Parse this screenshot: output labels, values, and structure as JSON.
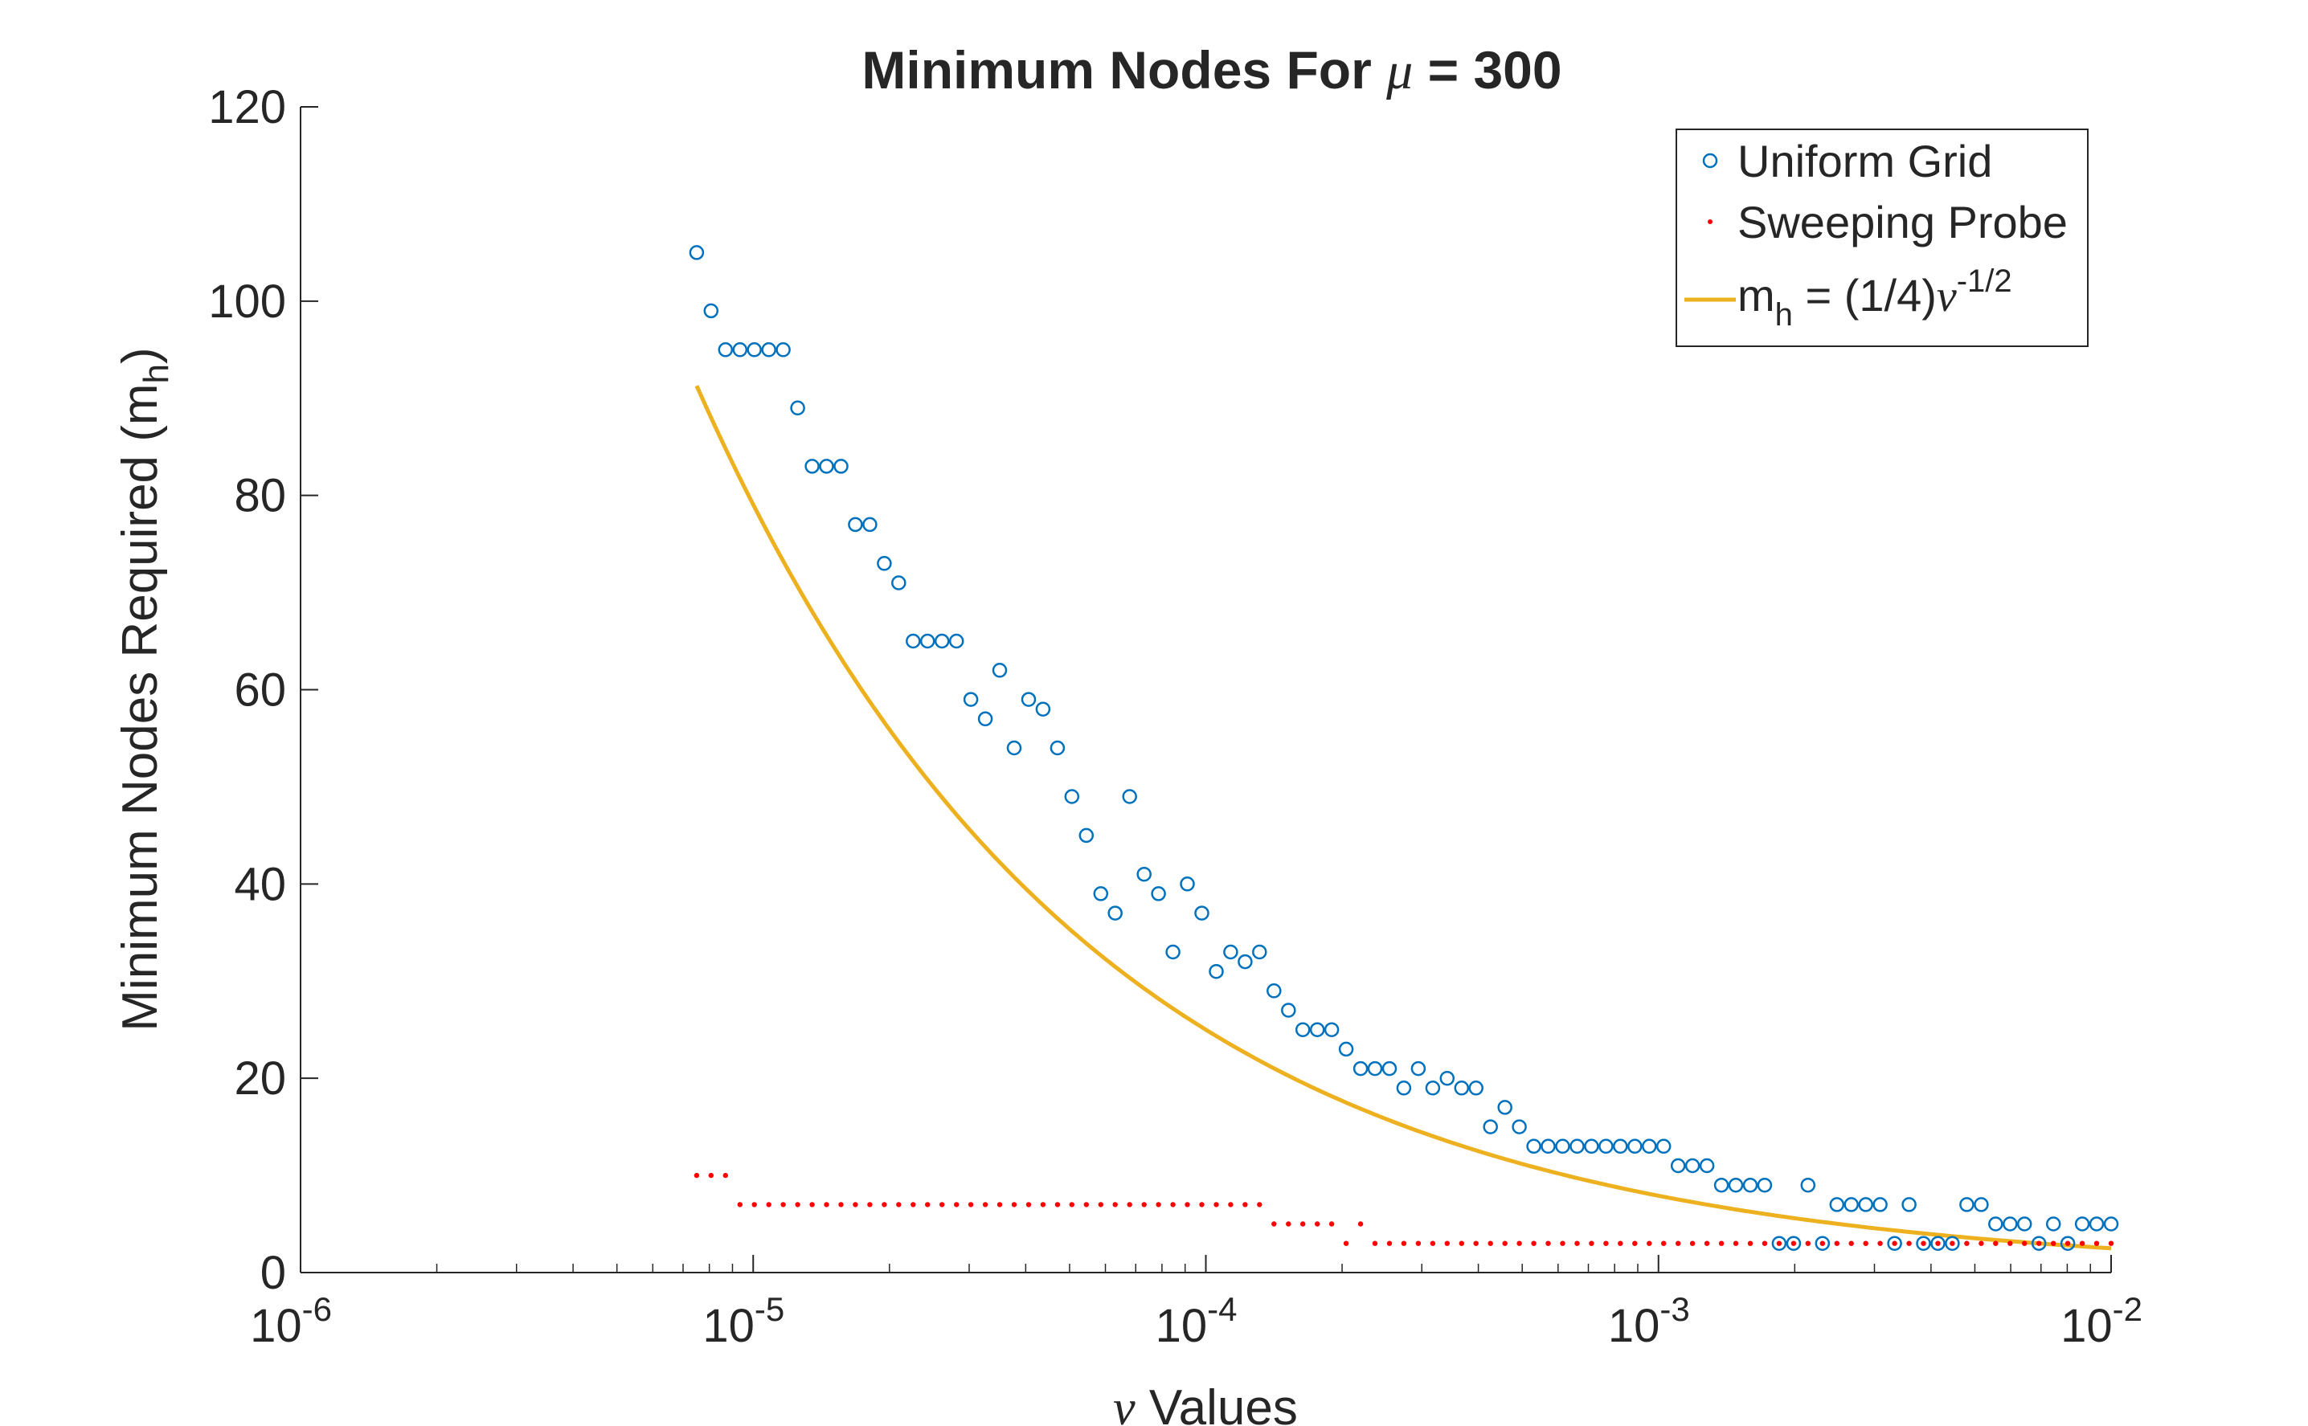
{
  "chart_data": {
    "type": "scatter",
    "title": {
      "prefix": "Minimum Nodes For ",
      "symbol": "μ",
      "suffix": " = 300"
    },
    "xlabel": {
      "symbol": "ν",
      "text": " Values"
    },
    "ylabel": {
      "text": "Minimum Nodes Required (m",
      "sub": "h",
      "close": ")"
    },
    "xscale": "log",
    "xlim": [
      1e-06,
      0.01
    ],
    "ylim": [
      0,
      120
    ],
    "xticks": [
      {
        "value": 1e-06,
        "base": "10",
        "exp": "-6"
      },
      {
        "value": 1e-05,
        "base": "10",
        "exp": "-5"
      },
      {
        "value": 0.0001,
        "base": "10",
        "exp": "-4"
      },
      {
        "value": 0.001,
        "base": "10",
        "exp": "-3"
      },
      {
        "value": 0.01,
        "base": "10",
        "exp": "-2"
      }
    ],
    "yticks": [
      "0",
      "20",
      "40",
      "60",
      "80",
      "100",
      "120"
    ],
    "grid": false,
    "legend_position": "top-right",
    "x_range_points": {
      "start": 7.5e-06,
      "end": 0.01,
      "count": 99
    },
    "series": [
      {
        "name": "Uniform Grid",
        "marker": "circle",
        "color": "#0072BD",
        "values": [
          105,
          99,
          95,
          95,
          95,
          95,
          95,
          89,
          83,
          83,
          83,
          77,
          77,
          73,
          71,
          65,
          65,
          65,
          65,
          59,
          57,
          62,
          54,
          59,
          58,
          54,
          49,
          45,
          39,
          37,
          49,
          41,
          39,
          33,
          40,
          37,
          31,
          33,
          32,
          33,
          29,
          27,
          25,
          25,
          25,
          23,
          21,
          21,
          21,
          19,
          21,
          19,
          20,
          19,
          19,
          15,
          17,
          15,
          13,
          13,
          13,
          13,
          13,
          13,
          13,
          13,
          13,
          13,
          11,
          11,
          11,
          9,
          9,
          9,
          9,
          3,
          3,
          9,
          3,
          7,
          7,
          7,
          7,
          3,
          7,
          3,
          3,
          3,
          7,
          7,
          5,
          5,
          5,
          3,
          5,
          3,
          5,
          5,
          5
        ]
      },
      {
        "name": "Sweeping Probe",
        "marker": "dot",
        "color": "#FF0000",
        "values": [
          10,
          10,
          10,
          7,
          7,
          7,
          7,
          7,
          7,
          7,
          7,
          7,
          7,
          7,
          7,
          7,
          7,
          7,
          7,
          7,
          7,
          7,
          7,
          7,
          7,
          7,
          7,
          7,
          7,
          7,
          7,
          7,
          7,
          7,
          7,
          7,
          7,
          7,
          7,
          7,
          5,
          5,
          5,
          5,
          5,
          3,
          5,
          3,
          3,
          3,
          3,
          3,
          3,
          3,
          3,
          3,
          3,
          3,
          3,
          3,
          3,
          3,
          3,
          3,
          3,
          3,
          3,
          3,
          3,
          3,
          3,
          3,
          3,
          3,
          3,
          3,
          3,
          3,
          3,
          3,
          3,
          3,
          3,
          3,
          3,
          3,
          3,
          3,
          3,
          3,
          3,
          3,
          3,
          3,
          3,
          3,
          3,
          3,
          3
        ]
      },
      {
        "name": {
          "prefix": "m",
          "sub": "h",
          "mid": " = (1/4)",
          "symbol": "ν",
          "sup": "-1/2"
        },
        "marker": "line",
        "color": "#EDB120",
        "formula": "0.25 * x^(-1/2)"
      }
    ]
  }
}
